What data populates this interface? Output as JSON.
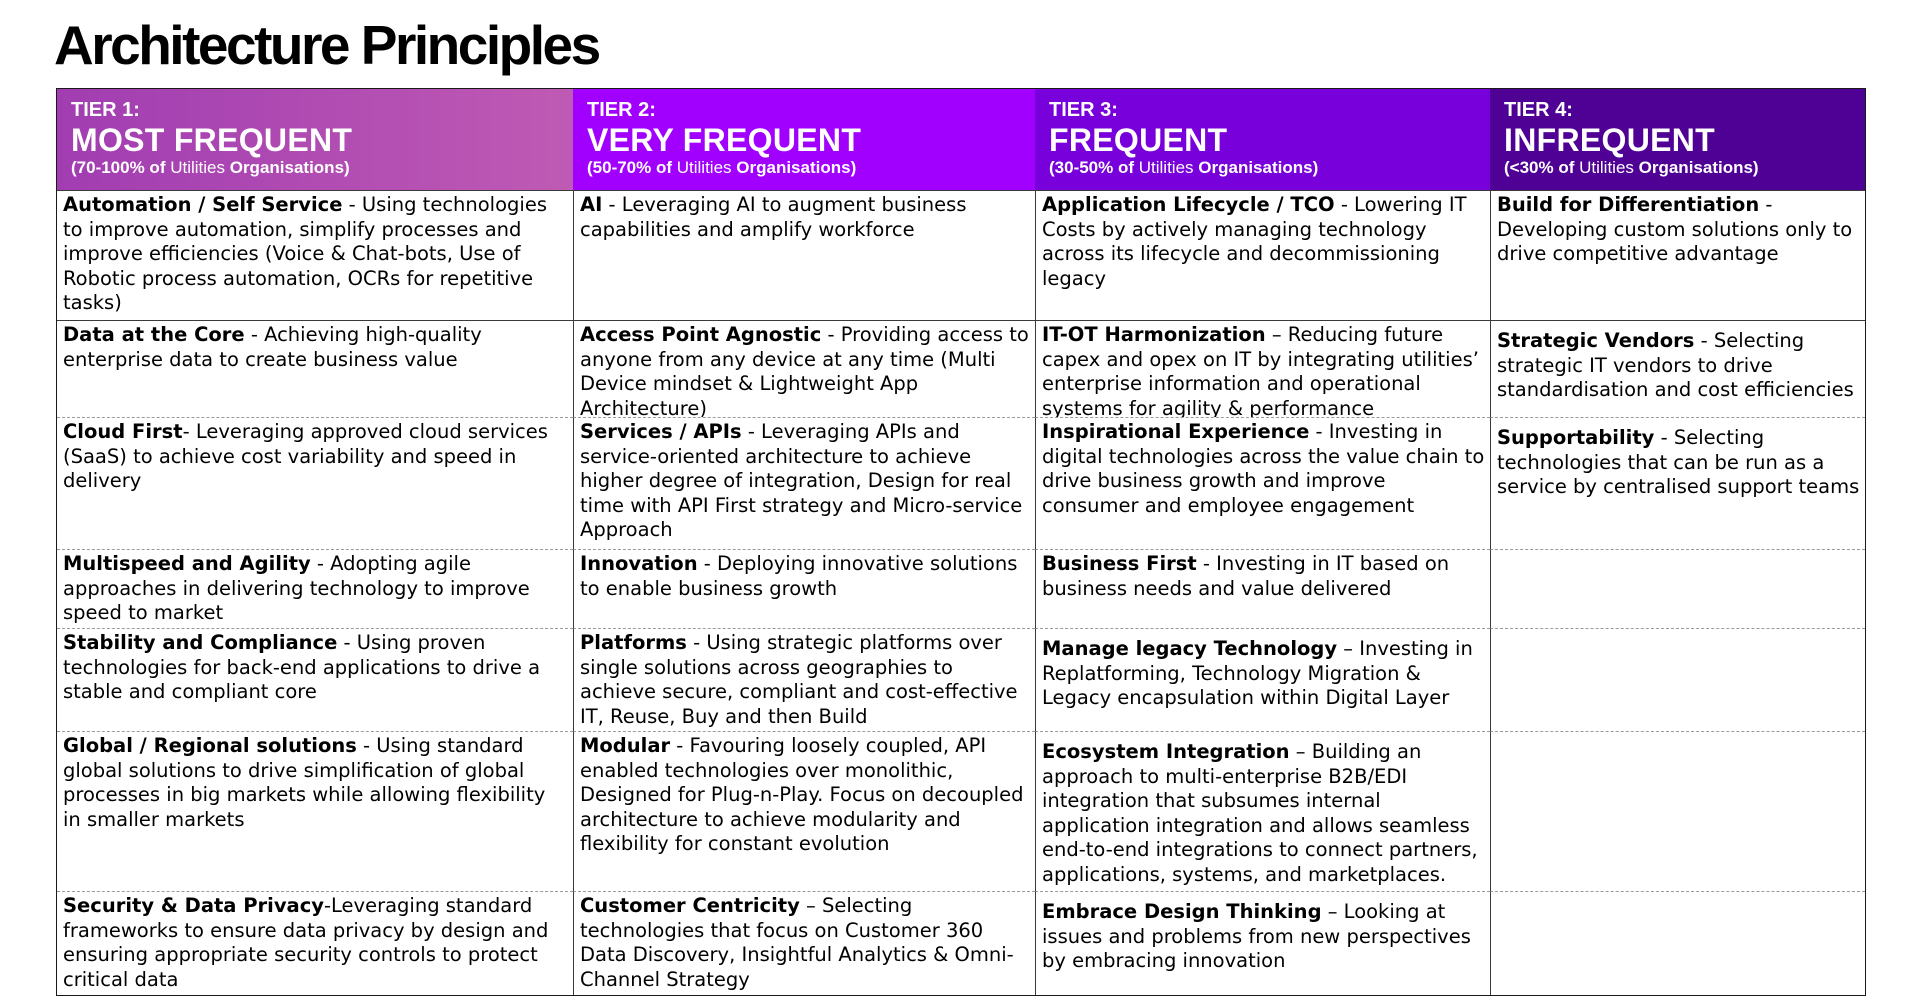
{
  "title": "Architecture Principles",
  "tiers": [
    {
      "tier": "TIER 1:",
      "frequency": "MOST FREQUENT",
      "range_prefix": "(70-100% of ",
      "range_mid": "Utilities",
      "range_suffix": " Organisations)",
      "color": "#b04eb3"
    },
    {
      "tier": "TIER 2:",
      "frequency": "VERY FREQUENT",
      "range_prefix": "(50-70% of ",
      "range_mid": "Utilities",
      "range_suffix": " Organisations)",
      "color": "#a100ff"
    },
    {
      "tier": "TIER 3:",
      "frequency": "FREQUENT",
      "range_prefix": "(30-50% of ",
      "range_mid": "Utilities",
      "range_suffix": " Organisations)",
      "color": "#7800da"
    },
    {
      "tier": "TIER 4:",
      "frequency": "INFREQUENT",
      "range_prefix": "(<30% of ",
      "range_mid": "Utilities",
      "range_suffix": " Organisations)",
      "color": "#4f0195"
    }
  ],
  "rows": [
    [
      {
        "name": "Automation / Self Service",
        "desc": " - Using technologies to improve automation, simplify processes and improve efficiencies (Voice & Chat-bots, Use of Robotic process automation, OCRs for repetitive tasks)"
      },
      {
        "name": "AI",
        "desc": " - Leveraging AI to augment business capabilities and amplify workforce"
      },
      {
        "name": "Application Lifecycle / TCO",
        "desc": " - Lowering IT Costs by actively managing technology across its lifecycle and decommissioning legacy"
      },
      {
        "name": "Build for Differentiation",
        "desc": " - Developing custom solutions only to drive competitive advantage"
      }
    ],
    [
      {
        "name": "Data at the Core",
        "desc": " - Achieving high-quality enterprise data to create business value"
      },
      {
        "name": "Access Point Agnostic",
        "desc": " - Providing access to anyone from any device at any time (Multi Device mindset & Lightweight App Architecture)"
      },
      {
        "name": "IT-OT Harmonization",
        "desc": " – Reducing future capex and opex on IT by integrating utilities’ enterprise information and operational systems for agility & performance"
      },
      {
        "name": "Strategic Vendors",
        "desc": " - Selecting strategic IT vendors to drive standardisation and cost efficiencies"
      }
    ],
    [
      {
        "name": "Cloud First",
        "desc": "- Leveraging approved cloud services (SaaS) to achieve cost variability and speed in delivery"
      },
      {
        "name": "Services / APIs",
        "desc": " - Leveraging APIs and service-oriented architecture to achieve higher degree of integration, Design for real time with API First strategy  and Micro-service Approach"
      },
      {
        "name": "Inspirational Experience",
        "desc": " - Investing in digital technologies across the value chain to drive business growth and improve consumer and employee engagement"
      },
      {
        "name": "Supportability",
        "desc": " - Selecting technologies that can be run as a service by centralised support teams"
      }
    ],
    [
      {
        "name": "Multispeed and Agility",
        "desc": " - Adopting agile approaches in delivering technology to improve speed to market"
      },
      {
        "name": "Innovation",
        "desc": " - Deploying innovative solutions to enable business growth"
      },
      {
        "name": "Business First",
        "desc": " - Investing in IT based on business needs and value delivered"
      },
      {
        "name": "",
        "desc": ""
      }
    ],
    [
      {
        "name": "Stability and Compliance",
        "desc": " - Using proven technologies for back-end applications to drive a stable and compliant core"
      },
      {
        "name": "Platforms",
        "desc": " - Using strategic platforms over single solutions across geographies to achieve secure, compliant and cost-effective IT, Reuse, Buy and then Build"
      },
      {
        "name": "Manage legacy Technology",
        "desc": " – Investing in Replatforming, Technology Migration & Legacy encapsulation within Digital Layer"
      },
      {
        "name": "",
        "desc": ""
      }
    ],
    [
      {
        "name": "Global / Regional solutions",
        "desc": " - Using standard global solutions to drive simplification of global processes in big markets while allowing flexibility in smaller markets"
      },
      {
        "name": "Modular",
        "desc": " - Favouring loosely coupled, API enabled technologies over monolithic, Designed for Plug-n-Play. Focus on decoupled architecture to achieve modularity and flexibility for constant evolution"
      },
      {
        "name": "Ecosystem Integration",
        "desc": " – Building an approach to multi-enterprise B2B/EDI integration that subsumes internal application integration and allows seamless end-to-end integrations to connect partners, applications, systems, and marketplaces."
      },
      {
        "name": "",
        "desc": ""
      }
    ],
    [
      {
        "name": "Security & Data Privacy",
        "desc": "-Leveraging standard frameworks to ensure data privacy by design and ensuring appropriate security controls to protect critical data"
      },
      {
        "name": "Customer Centricity",
        "desc": " – Selecting technologies that focus on Customer 360 Data Discovery, Insightful Analytics & Omni-Channel Strategy"
      },
      {
        "name": "Embrace Design Thinking",
        "desc": " – Looking at issues and problems from new perspectives by embracing innovation"
      },
      {
        "name": "",
        "desc": ""
      }
    ]
  ]
}
